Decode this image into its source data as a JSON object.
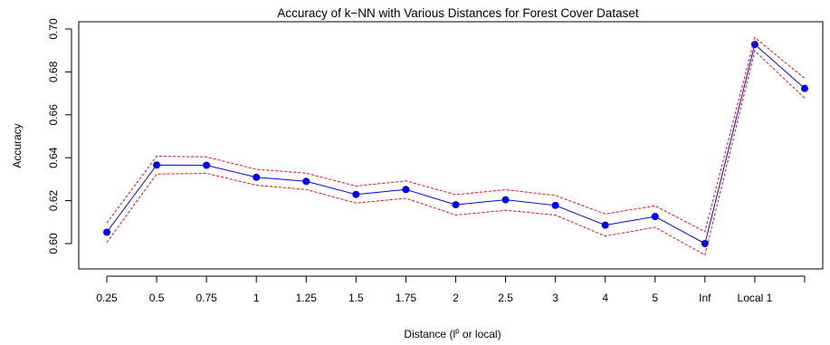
{
  "chart_data": {
    "type": "line",
    "title": "Accuracy of k−NN with Various Distances for Forest Cover Dataset",
    "xlabel": {
      "before": "Distance (l",
      "superscript": "p",
      "after": " or local)"
    },
    "ylabel": "Accuracy",
    "categories": [
      "0.25",
      "0.5",
      "0.75",
      "1",
      "1.25",
      "1.5",
      "1.75",
      "2",
      "2.5",
      "3",
      "4",
      "5",
      "Inf",
      "Local 1",
      ""
    ],
    "x_tick_labels": [
      "0.25",
      "0.5",
      "0.75",
      "1",
      "1.25",
      "1.5",
      "1.75",
      "2",
      "2.5",
      "3",
      "4",
      "5",
      "Inf",
      "Local 1"
    ],
    "ylim": [
      0.592,
      0.702
    ],
    "y_ticks": [
      0.6,
      0.62,
      0.64,
      0.66,
      0.68,
      0.7
    ],
    "y_tick_labels": [
      "0.60",
      "0.62",
      "0.64",
      "0.66",
      "0.68",
      "0.70"
    ],
    "grid": false,
    "series": [
      {
        "role": "mean",
        "color": "#0000ff",
        "style": "solid-with-markers",
        "values": [
          0.6053,
          0.6366,
          0.6365,
          0.6309,
          0.629,
          0.6229,
          0.6252,
          0.6181,
          0.6204,
          0.6178,
          0.6086,
          0.6126,
          0.6,
          0.6928,
          0.6723
        ]
      },
      {
        "role": "upper-bound",
        "color": "#ff0000",
        "style": "dashed",
        "values": [
          0.6096,
          0.6407,
          0.6404,
          0.6346,
          0.6328,
          0.6268,
          0.6292,
          0.6228,
          0.6251,
          0.6224,
          0.6138,
          0.6176,
          0.6055,
          0.696,
          0.677
        ]
      },
      {
        "role": "lower-bound",
        "color": "#ff0000",
        "style": "dashed",
        "values": [
          0.6005,
          0.6324,
          0.6327,
          0.6272,
          0.6252,
          0.6189,
          0.6211,
          0.6133,
          0.6155,
          0.6133,
          0.6035,
          0.6076,
          0.5947,
          0.6898,
          0.6678
        ]
      }
    ]
  }
}
